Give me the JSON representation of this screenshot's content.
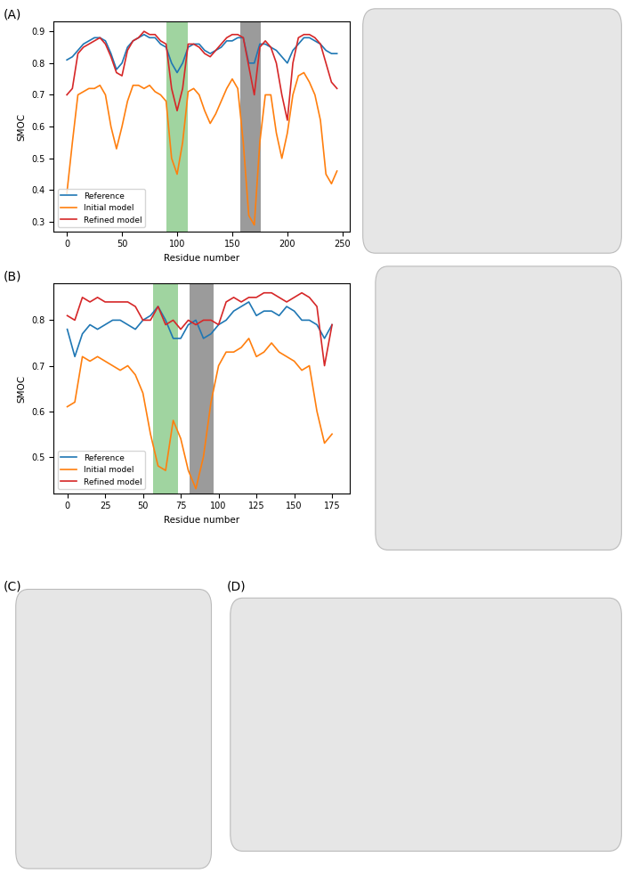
{
  "panel_labels": [
    "(A)",
    "(B)",
    "(C)",
    "(D)"
  ],
  "chart_data": [
    {
      "type": "line",
      "x_label": "Residue number",
      "y_label": "SMOC",
      "legend": "lower left",
      "x": [
        0,
        5,
        10,
        15,
        20,
        25,
        30,
        35,
        40,
        45,
        50,
        55,
        60,
        65,
        70,
        75,
        80,
        85,
        90,
        95,
        100,
        105,
        110,
        115,
        120,
        125,
        130,
        135,
        140,
        145,
        150,
        155,
        160,
        165,
        170,
        175,
        180,
        185,
        190,
        195,
        200,
        205,
        210,
        215,
        220,
        225,
        230,
        235,
        240,
        245
      ],
      "xlim": [
        -12,
        257
      ],
      "xticks": [
        0,
        50,
        100,
        150,
        200,
        250
      ],
      "ylim": [
        0.27,
        0.93
      ],
      "yticks": [
        0.3,
        0.4,
        0.5,
        0.6,
        0.7,
        0.8,
        0.9
      ],
      "spans": [
        {
          "xmin": 90,
          "xmax": 110,
          "color": "#2ca02c"
        },
        {
          "xmin": 157,
          "xmax": 176,
          "color": "#222222"
        }
      ],
      "series": [
        {
          "name": "Reference",
          "color": "#1f77b4",
          "values": [
            0.81,
            0.82,
            0.84,
            0.86,
            0.87,
            0.88,
            0.88,
            0.87,
            0.83,
            0.78,
            0.8,
            0.85,
            0.87,
            0.88,
            0.89,
            0.88,
            0.88,
            0.86,
            0.85,
            0.8,
            0.77,
            0.8,
            0.85,
            0.86,
            0.86,
            0.84,
            0.83,
            0.84,
            0.85,
            0.87,
            0.87,
            0.88,
            0.88,
            0.8,
            0.8,
            0.86,
            0.86,
            0.85,
            0.84,
            0.82,
            0.8,
            0.84,
            0.86,
            0.88,
            0.88,
            0.87,
            0.86,
            0.84,
            0.83,
            0.83
          ]
        },
        {
          "name": "Initial model",
          "color": "#ff7f0e",
          "values": [
            0.39,
            0.55,
            0.7,
            0.71,
            0.72,
            0.72,
            0.73,
            0.7,
            0.6,
            0.53,
            0.6,
            0.68,
            0.73,
            0.73,
            0.72,
            0.73,
            0.71,
            0.7,
            0.68,
            0.5,
            0.45,
            0.55,
            0.71,
            0.72,
            0.7,
            0.65,
            0.61,
            0.64,
            0.68,
            0.72,
            0.75,
            0.72,
            0.55,
            0.32,
            0.29,
            0.55,
            0.7,
            0.7,
            0.58,
            0.5,
            0.58,
            0.7,
            0.76,
            0.77,
            0.74,
            0.7,
            0.62,
            0.45,
            0.42,
            0.46
          ]
        },
        {
          "name": "Refined model",
          "color": "#d62728",
          "values": [
            0.7,
            0.72,
            0.83,
            0.85,
            0.86,
            0.87,
            0.88,
            0.86,
            0.82,
            0.77,
            0.76,
            0.84,
            0.87,
            0.88,
            0.9,
            0.89,
            0.89,
            0.87,
            0.86,
            0.72,
            0.65,
            0.72,
            0.86,
            0.86,
            0.85,
            0.83,
            0.82,
            0.84,
            0.86,
            0.88,
            0.89,
            0.89,
            0.88,
            0.79,
            0.7,
            0.85,
            0.87,
            0.85,
            0.8,
            0.7,
            0.62,
            0.8,
            0.88,
            0.89,
            0.89,
            0.88,
            0.86,
            0.8,
            0.74,
            0.72
          ]
        }
      ]
    },
    {
      "type": "line",
      "x_label": "Residue number",
      "y_label": "SMOC",
      "legend": "lower left",
      "x": [
        0,
        5,
        10,
        15,
        20,
        25,
        30,
        35,
        40,
        45,
        50,
        55,
        60,
        65,
        70,
        75,
        80,
        85,
        90,
        95,
        100,
        105,
        110,
        115,
        120,
        125,
        130,
        135,
        140,
        145,
        150,
        155,
        160,
        165,
        170,
        175
      ],
      "xlim": [
        -9,
        187
      ],
      "xticks": [
        0,
        25,
        50,
        75,
        100,
        125,
        150,
        175
      ],
      "ylim": [
        0.42,
        0.88
      ],
      "yticks": [
        0.5,
        0.6,
        0.7,
        0.8
      ],
      "spans": [
        {
          "xmin": 57,
          "xmax": 73,
          "color": "#2ca02c"
        },
        {
          "xmin": 81,
          "xmax": 97,
          "color": "#222222"
        }
      ],
      "series": [
        {
          "name": "Reference",
          "color": "#1f77b4",
          "values": [
            0.78,
            0.72,
            0.77,
            0.79,
            0.78,
            0.79,
            0.8,
            0.8,
            0.79,
            0.78,
            0.8,
            0.81,
            0.83,
            0.8,
            0.76,
            0.76,
            0.79,
            0.8,
            0.76,
            0.77,
            0.79,
            0.8,
            0.82,
            0.83,
            0.84,
            0.81,
            0.82,
            0.82,
            0.81,
            0.83,
            0.82,
            0.8,
            0.8,
            0.79,
            0.76,
            0.79
          ]
        },
        {
          "name": "Initial model",
          "color": "#ff7f0e",
          "values": [
            0.61,
            0.62,
            0.72,
            0.71,
            0.72,
            0.71,
            0.7,
            0.69,
            0.7,
            0.68,
            0.64,
            0.55,
            0.48,
            0.47,
            0.58,
            0.54,
            0.47,
            0.43,
            0.5,
            0.62,
            0.7,
            0.73,
            0.73,
            0.74,
            0.76,
            0.72,
            0.73,
            0.75,
            0.73,
            0.72,
            0.71,
            0.69,
            0.7,
            0.6,
            0.53,
            0.55
          ]
        },
        {
          "name": "Refined model",
          "color": "#d62728",
          "values": [
            0.81,
            0.8,
            0.85,
            0.84,
            0.85,
            0.84,
            0.84,
            0.84,
            0.84,
            0.83,
            0.8,
            0.8,
            0.83,
            0.79,
            0.8,
            0.78,
            0.8,
            0.79,
            0.8,
            0.8,
            0.79,
            0.84,
            0.85,
            0.84,
            0.85,
            0.85,
            0.86,
            0.86,
            0.85,
            0.84,
            0.85,
            0.86,
            0.85,
            0.83,
            0.7,
            0.79
          ]
        }
      ]
    }
  ]
}
